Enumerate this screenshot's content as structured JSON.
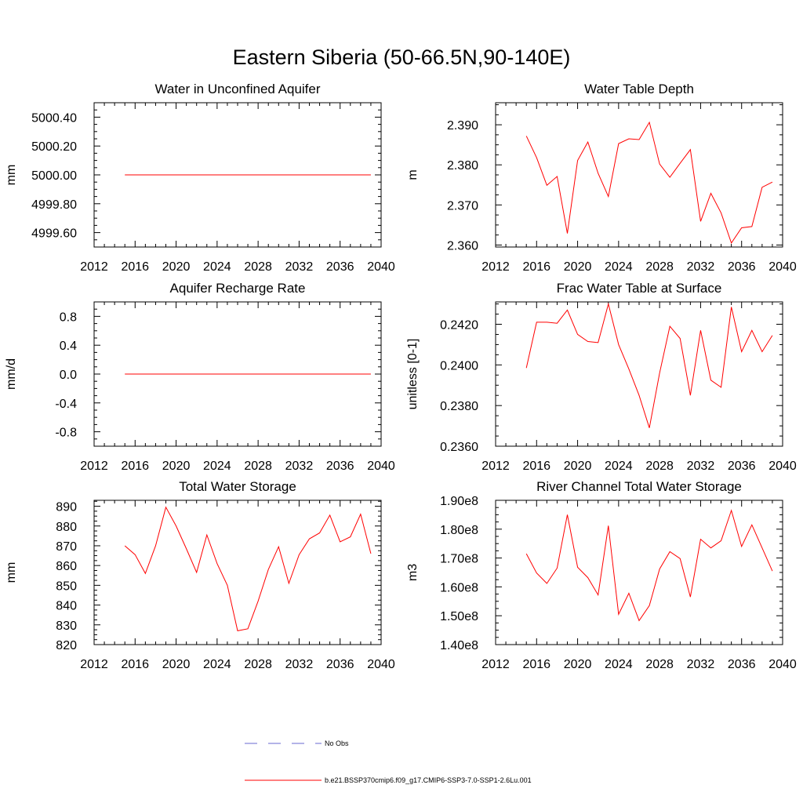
{
  "figure": {
    "title": "Eastern Siberia (50-66.5N,90-140E)"
  },
  "colors": {
    "model_line": "#ff0000",
    "obs_line": "#6a6ad0",
    "axis": "#000000"
  },
  "legend": {
    "position": "bottom-center",
    "entries": [
      {
        "label": "No Obs",
        "style": "dashed",
        "color": "#6a6ad0"
      },
      {
        "label": "b.e21.BSSP370cmip6.f09_g17.CMIP6-SSP3-7.0-SSP1-2.6Lu.001",
        "style": "solid",
        "color": "#ff0000"
      }
    ]
  },
  "chart_data": [
    {
      "type": "line",
      "title": "Water in Unconfined Aquifer",
      "ylabel": "mm",
      "xlim": [
        2012,
        2040
      ],
      "ylim": [
        4999.5,
        5000.5
      ],
      "xticks": [
        2012,
        2016,
        2020,
        2024,
        2028,
        2032,
        2036,
        2040
      ],
      "xtick_labels": [
        "2012",
        "2016",
        "2020",
        "2024",
        "2028",
        "2032",
        "2036",
        "2040"
      ],
      "yticks": [
        4999.6,
        4999.8,
        5000.0,
        5000.2,
        5000.4
      ],
      "ytick_labels": [
        "4999.60",
        "4999.80",
        "5000.00",
        "5000.20",
        "5000.40"
      ],
      "x": [
        2015,
        2016,
        2017,
        2018,
        2019,
        2020,
        2021,
        2022,
        2023,
        2024,
        2025,
        2026,
        2027,
        2028,
        2029,
        2030,
        2031,
        2032,
        2033,
        2034,
        2035,
        2036,
        2037,
        2038,
        2039
      ],
      "y": [
        5000,
        5000,
        5000,
        5000,
        5000,
        5000,
        5000,
        5000,
        5000,
        5000,
        5000,
        5000,
        5000,
        5000,
        5000,
        5000,
        5000,
        5000,
        5000,
        5000,
        5000,
        5000,
        5000,
        5000,
        5000
      ]
    },
    {
      "type": "line",
      "title": "Water Table Depth",
      "ylabel": "m",
      "xlim": [
        2012,
        2040
      ],
      "ylim": [
        2.3595,
        2.3955
      ],
      "xticks": [
        2012,
        2016,
        2020,
        2024,
        2028,
        2032,
        2036,
        2040
      ],
      "xtick_labels": [
        "2012",
        "2016",
        "2020",
        "2024",
        "2028",
        "2032",
        "2036",
        "2040"
      ],
      "yticks": [
        2.36,
        2.37,
        2.38,
        2.39
      ],
      "ytick_labels": [
        "2.360",
        "2.370",
        "2.380",
        "2.390"
      ],
      "x": [
        2015,
        2016,
        2017,
        2018,
        2019,
        2020,
        2021,
        2022,
        2023,
        2024,
        2025,
        2026,
        2027,
        2028,
        2029,
        2030,
        2031,
        2032,
        2033,
        2034,
        2035,
        2036,
        2037,
        2038,
        2039
      ],
      "y": [
        2.3872,
        2.3818,
        2.3749,
        2.3771,
        2.3629,
        2.3811,
        2.3857,
        2.3779,
        2.3721,
        2.3853,
        2.3865,
        2.3863,
        2.3906,
        2.3802,
        2.3769,
        2.3804,
        2.3838,
        2.3659,
        2.3729,
        2.368,
        2.3605,
        2.3643,
        2.3646,
        2.3744,
        2.3757
      ]
    },
    {
      "type": "line",
      "title": "Aquifer Recharge Rate",
      "ylabel": "mm/d",
      "xlim": [
        2012,
        2040
      ],
      "ylim": [
        -1.0,
        1.0
      ],
      "xticks": [
        2012,
        2016,
        2020,
        2024,
        2028,
        2032,
        2036,
        2040
      ],
      "xtick_labels": [
        "2012",
        "2016",
        "2020",
        "2024",
        "2028",
        "2032",
        "2036",
        "2040"
      ],
      "yticks": [
        -0.8,
        -0.4,
        0.0,
        0.4,
        0.8
      ],
      "ytick_labels": [
        "-0.8",
        "-0.4",
        "0.0",
        "0.4",
        "0.8"
      ],
      "x": [
        2015,
        2016,
        2017,
        2018,
        2019,
        2020,
        2021,
        2022,
        2023,
        2024,
        2025,
        2026,
        2027,
        2028,
        2029,
        2030,
        2031,
        2032,
        2033,
        2034,
        2035,
        2036,
        2037,
        2038,
        2039
      ],
      "y": [
        0,
        0,
        0,
        0,
        0,
        0,
        0,
        0,
        0,
        0,
        0,
        0,
        0,
        0,
        0,
        0,
        0,
        0,
        0,
        0,
        0,
        0,
        0,
        0,
        0
      ]
    },
    {
      "type": "line",
      "title": "Frac Water Table at Surface",
      "ylabel": "unitless [0-1]",
      "xlim": [
        2012,
        2040
      ],
      "ylim": [
        0.236,
        0.2431
      ],
      "xticks": [
        2012,
        2016,
        2020,
        2024,
        2028,
        2032,
        2036,
        2040
      ],
      "xtick_labels": [
        "2012",
        "2016",
        "2020",
        "2024",
        "2028",
        "2032",
        "2036",
        "2040"
      ],
      "yticks": [
        0.236,
        0.238,
        0.24,
        0.242
      ],
      "ytick_labels": [
        "0.2360",
        "0.2380",
        "0.2400",
        "0.2420"
      ],
      "x": [
        2015,
        2016,
        2017,
        2018,
        2019,
        2020,
        2021,
        2022,
        2023,
        2024,
        2025,
        2026,
        2027,
        2028,
        2029,
        2030,
        2031,
        2032,
        2033,
        2034,
        2035,
        2036,
        2037,
        2038,
        2039
      ],
      "y": [
        0.23985,
        0.2421,
        0.2421,
        0.24205,
        0.2427,
        0.2415,
        0.24115,
        0.2411,
        0.243,
        0.241,
        0.2398,
        0.2385,
        0.2369,
        0.2396,
        0.2419,
        0.2413,
        0.2385,
        0.2417,
        0.23925,
        0.2389,
        0.24285,
        0.24065,
        0.2417,
        0.24065,
        0.24145
      ]
    },
    {
      "type": "line",
      "title": "Total Water Storage",
      "ylabel": "mm",
      "xlim": [
        2012,
        2040
      ],
      "ylim": [
        820,
        893
      ],
      "xticks": [
        2012,
        2016,
        2020,
        2024,
        2028,
        2032,
        2036,
        2040
      ],
      "xtick_labels": [
        "2012",
        "2016",
        "2020",
        "2024",
        "2028",
        "2032",
        "2036",
        "2040"
      ],
      "yticks": [
        820,
        830,
        840,
        850,
        860,
        870,
        880,
        890
      ],
      "ytick_labels": [
        "820",
        "830",
        "840",
        "850",
        "860",
        "870",
        "880",
        "890"
      ],
      "x": [
        2015,
        2016,
        2017,
        2018,
        2019,
        2020,
        2021,
        2022,
        2023,
        2024,
        2025,
        2026,
        2027,
        2028,
        2029,
        2030,
        2031,
        2032,
        2033,
        2034,
        2035,
        2036,
        2037,
        2038,
        2039
      ],
      "y": [
        870,
        865.5,
        856,
        870,
        889.5,
        880,
        868.5,
        856.5,
        875.5,
        861,
        850,
        827,
        828,
        842,
        858,
        869.5,
        851,
        865.5,
        873.5,
        876.5,
        885.5,
        872,
        874.5,
        886,
        866
      ]
    },
    {
      "type": "line",
      "title": "River Channel Total Water Storage",
      "ylabel": "m3",
      "xlim": [
        2012,
        2040
      ],
      "ylim": [
        140000000.0,
        190000000.0
      ],
      "xticks": [
        2012,
        2016,
        2020,
        2024,
        2028,
        2032,
        2036,
        2040
      ],
      "xtick_labels": [
        "2012",
        "2016",
        "2020",
        "2024",
        "2028",
        "2032",
        "2036",
        "2040"
      ],
      "yticks": [
        140000000.0,
        150000000.0,
        160000000.0,
        170000000.0,
        180000000.0,
        190000000.0
      ],
      "ytick_labels": [
        "1.40e8",
        "1.50e8",
        "1.60e8",
        "1.70e8",
        "1.80e8",
        "1.90e8"
      ],
      "x": [
        2015,
        2016,
        2017,
        2018,
        2019,
        2020,
        2021,
        2022,
        2023,
        2024,
        2025,
        2026,
        2027,
        2028,
        2029,
        2030,
        2031,
        2032,
        2033,
        2034,
        2035,
        2036,
        2037,
        2038,
        2039
      ],
      "y": [
        171500000.0,
        164800000.0,
        161200000.0,
        166500000.0,
        185000000.0,
        166800000.0,
        163200000.0,
        157200000.0,
        181200000.0,
        150500000.0,
        157800000.0,
        148300000.0,
        153500000.0,
        166200000.0,
        172200000.0,
        169800000.0,
        156500000.0,
        176500000.0,
        173500000.0,
        176000000.0,
        186500000.0,
        174000000.0,
        181500000.0,
        173500000.0,
        165500000.0
      ]
    }
  ]
}
